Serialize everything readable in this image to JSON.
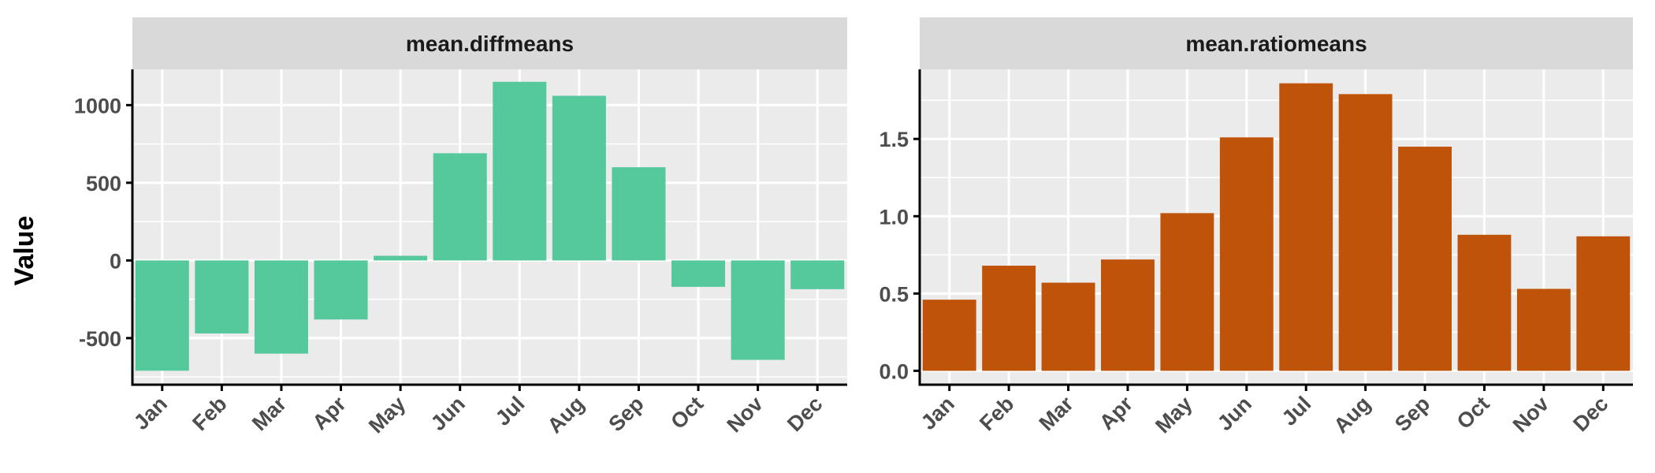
{
  "chart_data": {
    "type": "bar",
    "ylabel": "Value",
    "xlabel": "",
    "categories": [
      "Jan",
      "Feb",
      "Mar",
      "Apr",
      "May",
      "Jun",
      "Jul",
      "Aug",
      "Sep",
      "Oct",
      "Nov",
      "Dec"
    ],
    "panels": [
      {
        "title": "mean.diffmeans",
        "color": "#55C89C",
        "ylim": [
          -800,
          1230
        ],
        "yticks": [
          -500,
          0,
          500,
          1000
        ],
        "ytick_labels": [
          "-500",
          "0",
          "500",
          "1000"
        ],
        "values": [
          -710,
          -470,
          -600,
          -380,
          30,
          690,
          1150,
          1060,
          600,
          -170,
          -640,
          -185
        ]
      },
      {
        "title": "mean.ratiomeans",
        "color": "#C0530A",
        "ylim": [
          -0.09,
          1.95
        ],
        "yticks": [
          0.0,
          0.5,
          1.0,
          1.5
        ],
        "ytick_labels": [
          "0.0",
          "0.5",
          "1.0",
          "1.5"
        ],
        "values": [
          0.46,
          0.68,
          0.57,
          0.72,
          1.02,
          1.51,
          1.86,
          1.79,
          1.45,
          0.88,
          0.53,
          0.87
        ]
      }
    ]
  },
  "colors": {
    "panel_background": "#EBEBEB",
    "strip_background": "#D9D9D9",
    "grid": "#FFFFFF",
    "axis_line": "#000000",
    "tick_text": "#4D4D4D"
  }
}
